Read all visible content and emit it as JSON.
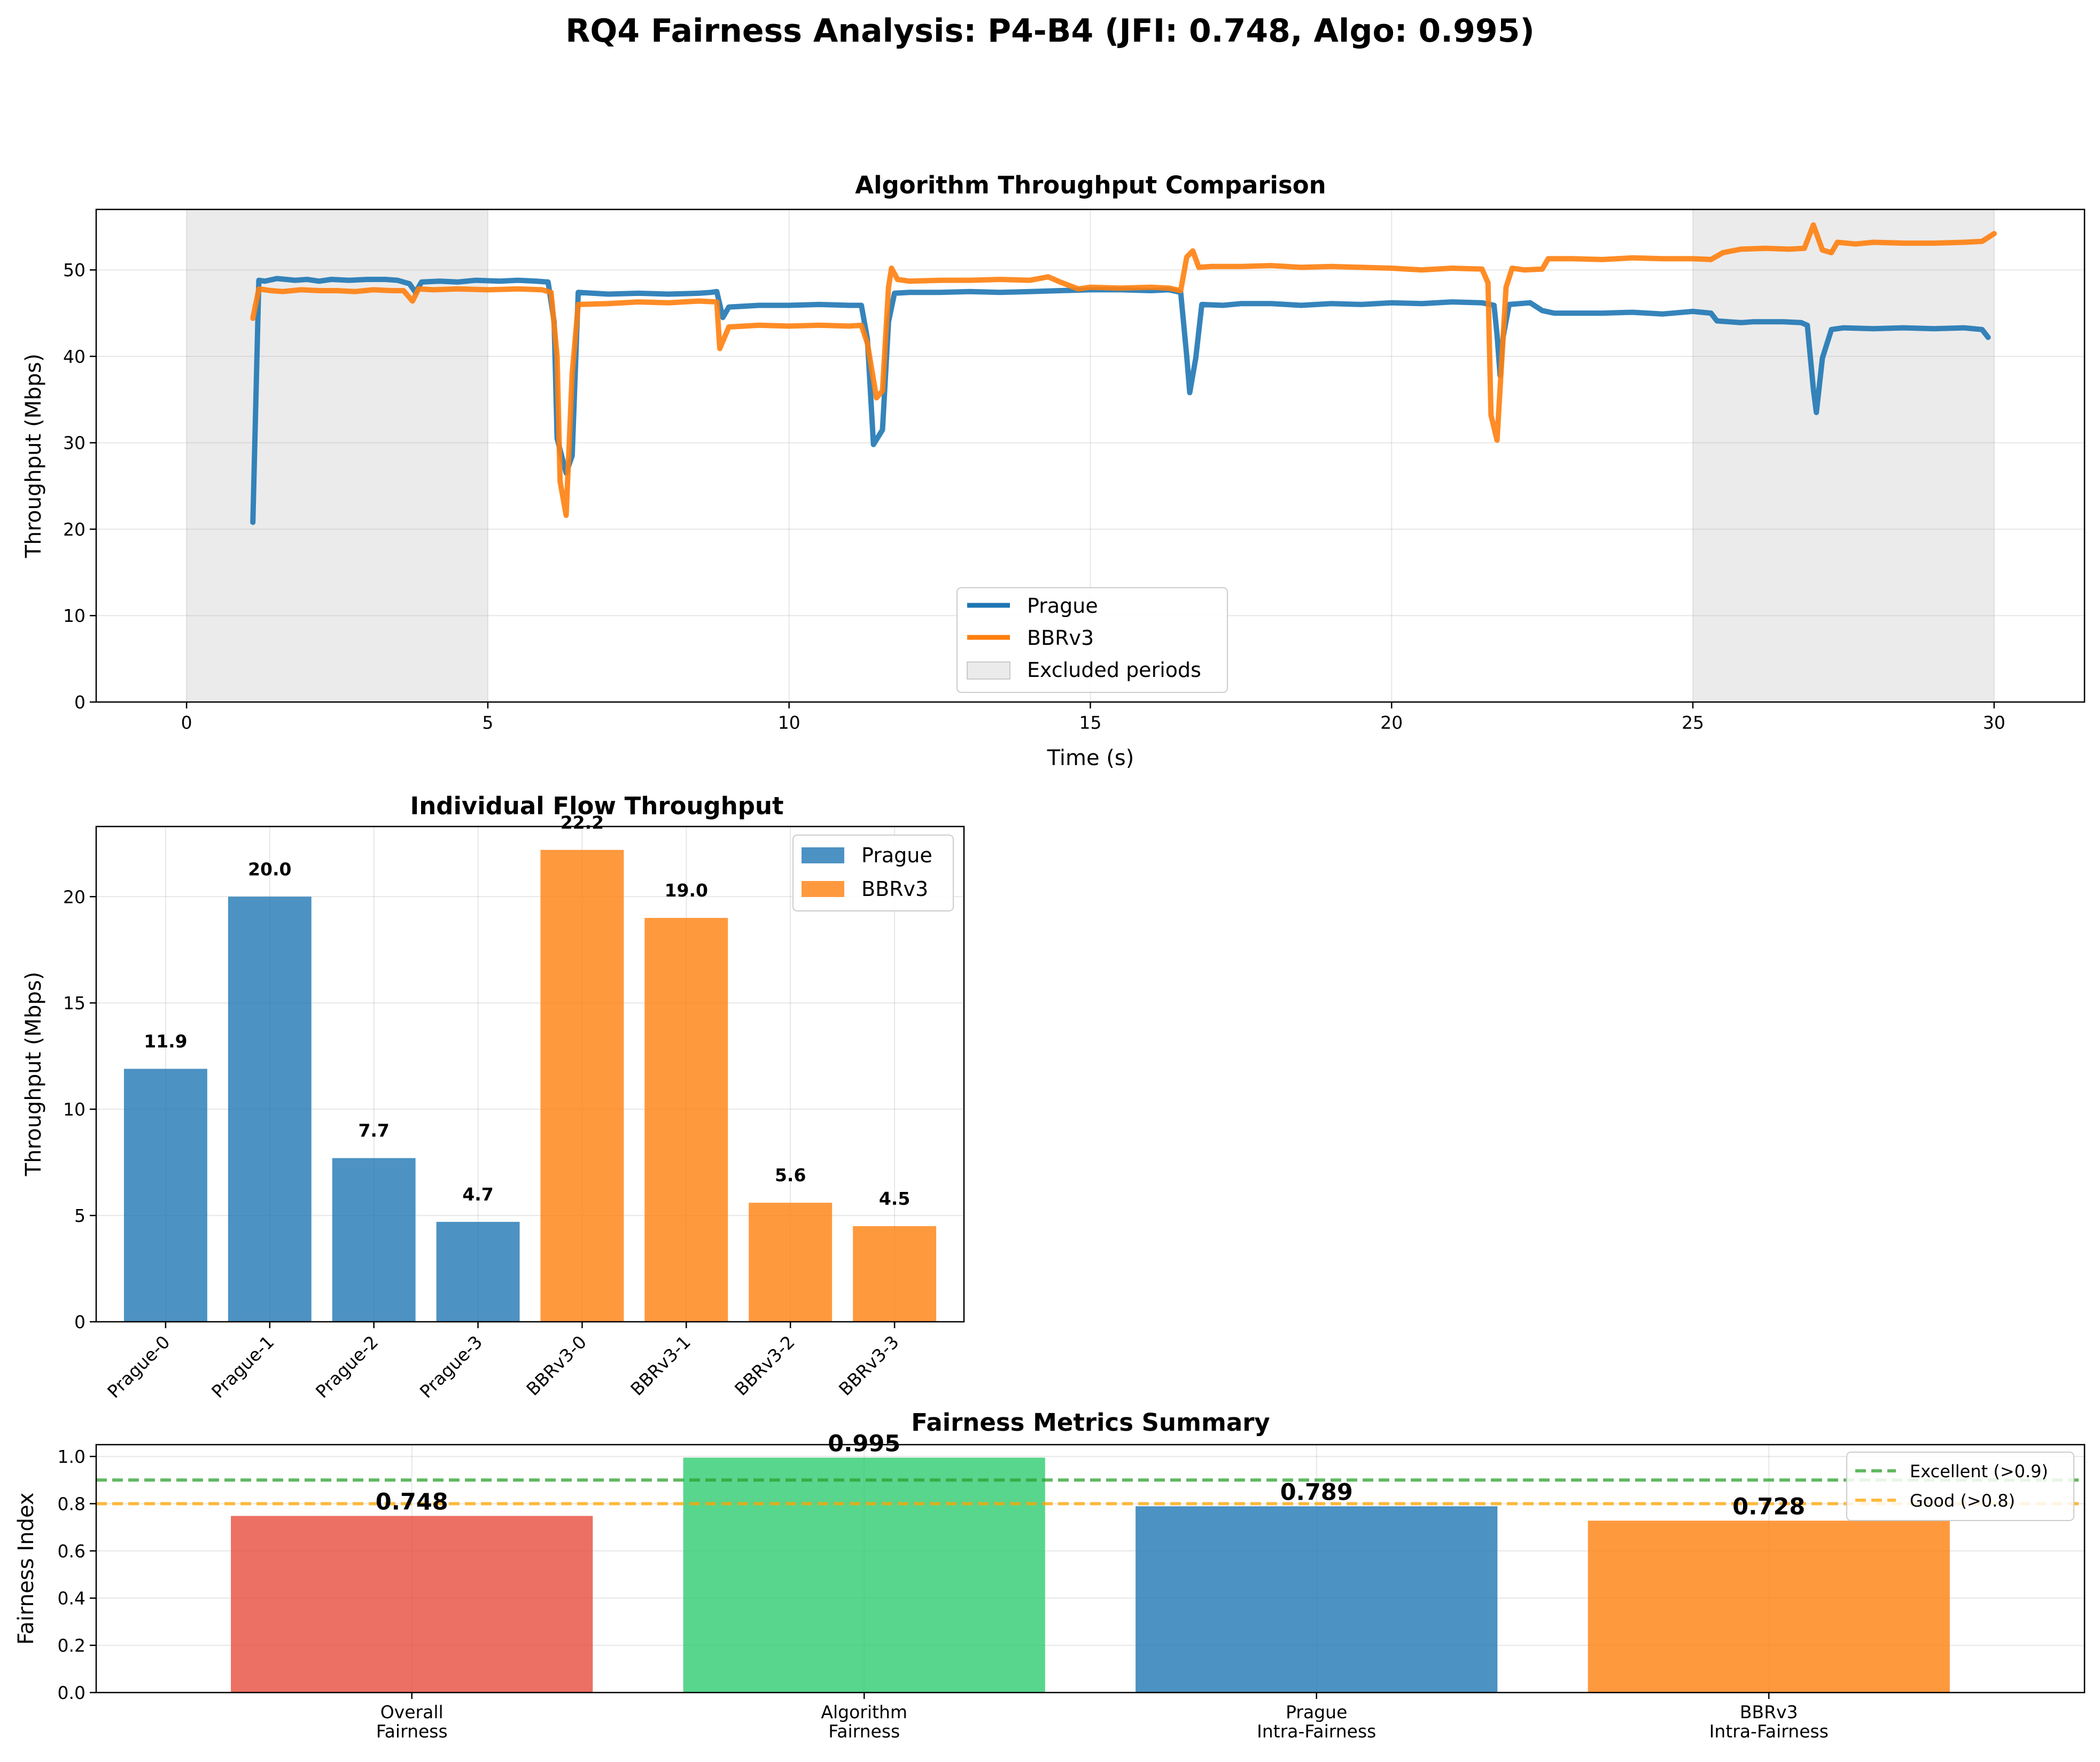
{
  "figure": {
    "suptitle": "RQ4 Fairness Analysis: P4-B4 (JFI: 0.748, Algo: 0.995)"
  },
  "colors": {
    "prague": "#1f77b4",
    "bbrv3": "#ff7f0e",
    "overall": "#e74c3c",
    "algorithm": "#2ecc71",
    "excellent": "#2ca02c",
    "good": "#ffa500",
    "excluded": "#d3d3d3"
  },
  "chart_data": [
    {
      "id": "timeseries",
      "type": "line",
      "title": "Algorithm Throughput Comparison",
      "xlabel": "Time (s)",
      "ylabel": "Throughput (Mbps)",
      "xlim": [
        -1.5,
        31.5
      ],
      "ylim": [
        0,
        57
      ],
      "xticks": [
        "0",
        "5",
        "10",
        "15",
        "20",
        "25",
        "30"
      ],
      "yticks": [
        "0",
        "10",
        "20",
        "30",
        "40",
        "50"
      ],
      "grid": true,
      "legend_position": "lower-center",
      "legend": [
        "Prague",
        "BBRv3",
        "Excluded periods"
      ],
      "excluded_periods": [
        [
          0,
          5
        ],
        [
          25,
          30
        ]
      ],
      "series": [
        {
          "name": "Prague",
          "color_key": "prague",
          "points": [
            [
              1.1,
              20.8
            ],
            [
              1.2,
              48.8
            ],
            [
              1.3,
              48.7
            ],
            [
              1.5,
              49.0
            ],
            [
              1.8,
              48.8
            ],
            [
              2.0,
              48.9
            ],
            [
              2.2,
              48.7
            ],
            [
              2.4,
              48.9
            ],
            [
              2.7,
              48.8
            ],
            [
              3.0,
              48.9
            ],
            [
              3.3,
              48.9
            ],
            [
              3.5,
              48.8
            ],
            [
              3.7,
              48.4
            ],
            [
              3.8,
              47.4
            ],
            [
              3.9,
              48.6
            ],
            [
              4.2,
              48.7
            ],
            [
              4.5,
              48.6
            ],
            [
              4.8,
              48.8
            ],
            [
              5.2,
              48.7
            ],
            [
              5.5,
              48.8
            ],
            [
              5.8,
              48.7
            ],
            [
              6.0,
              48.6
            ],
            [
              6.1,
              44.0
            ],
            [
              6.15,
              30.5
            ],
            [
              6.3,
              26.5
            ],
            [
              6.4,
              28.5
            ],
            [
              6.5,
              47.4
            ],
            [
              7.0,
              47.2
            ],
            [
              7.5,
              47.3
            ],
            [
              8.0,
              47.2
            ],
            [
              8.5,
              47.3
            ],
            [
              8.7,
              47.4
            ],
            [
              8.8,
              47.5
            ],
            [
              8.9,
              44.5
            ],
            [
              9.0,
              45.7
            ],
            [
              9.5,
              45.9
            ],
            [
              10.0,
              45.9
            ],
            [
              10.5,
              46.0
            ],
            [
              11.0,
              45.9
            ],
            [
              11.2,
              45.9
            ],
            [
              11.3,
              42.0
            ],
            [
              11.4,
              29.8
            ],
            [
              11.55,
              31.5
            ],
            [
              11.65,
              44.0
            ],
            [
              11.75,
              47.3
            ],
            [
              12.0,
              47.4
            ],
            [
              12.5,
              47.4
            ],
            [
              13.0,
              47.5
            ],
            [
              13.5,
              47.4
            ],
            [
              14.0,
              47.5
            ],
            [
              14.5,
              47.6
            ],
            [
              15.0,
              47.7
            ],
            [
              15.5,
              47.7
            ],
            [
              16.0,
              47.6
            ],
            [
              16.3,
              47.7
            ],
            [
              16.5,
              47.4
            ],
            [
              16.6,
              40.0
            ],
            [
              16.65,
              35.8
            ],
            [
              16.75,
              39.8
            ],
            [
              16.85,
              46.0
            ],
            [
              17.2,
              45.9
            ],
            [
              17.5,
              46.1
            ],
            [
              18.0,
              46.1
            ],
            [
              18.5,
              45.9
            ],
            [
              19.0,
              46.1
            ],
            [
              19.5,
              46.0
            ],
            [
              20.0,
              46.2
            ],
            [
              20.5,
              46.1
            ],
            [
              21.0,
              46.3
            ],
            [
              21.5,
              46.2
            ],
            [
              21.7,
              45.9
            ],
            [
              21.75,
              42.5
            ],
            [
              21.8,
              37.8
            ],
            [
              21.85,
              42.2
            ],
            [
              21.95,
              46.0
            ],
            [
              22.3,
              46.2
            ],
            [
              22.5,
              45.3
            ],
            [
              22.7,
              45.0
            ],
            [
              23.0,
              45.0
            ],
            [
              23.5,
              45.0
            ],
            [
              24.0,
              45.1
            ],
            [
              24.5,
              44.9
            ],
            [
              25.0,
              45.2
            ],
            [
              25.3,
              45.0
            ],
            [
              25.4,
              44.1
            ],
            [
              25.6,
              44.0
            ],
            [
              25.8,
              43.9
            ],
            [
              26.0,
              44.0
            ],
            [
              26.5,
              44.0
            ],
            [
              26.8,
              43.9
            ],
            [
              26.9,
              43.6
            ],
            [
              27.0,
              36.2
            ],
            [
              27.05,
              33.5
            ],
            [
              27.15,
              39.8
            ],
            [
              27.3,
              43.1
            ],
            [
              27.5,
              43.3
            ],
            [
              28.0,
              43.2
            ],
            [
              28.5,
              43.3
            ],
            [
              29.0,
              43.2
            ],
            [
              29.5,
              43.3
            ],
            [
              29.8,
              43.1
            ],
            [
              29.9,
              42.2
            ]
          ]
        },
        {
          "name": "BBRv3",
          "color_key": "bbrv3",
          "points": [
            [
              1.1,
              44.4
            ],
            [
              1.2,
              47.8
            ],
            [
              1.4,
              47.6
            ],
            [
              1.6,
              47.5
            ],
            [
              1.9,
              47.7
            ],
            [
              2.2,
              47.6
            ],
            [
              2.5,
              47.6
            ],
            [
              2.8,
              47.5
            ],
            [
              3.1,
              47.7
            ],
            [
              3.4,
              47.6
            ],
            [
              3.6,
              47.6
            ],
            [
              3.75,
              46.4
            ],
            [
              3.85,
              47.8
            ],
            [
              4.1,
              47.7
            ],
            [
              4.5,
              47.8
            ],
            [
              5.0,
              47.7
            ],
            [
              5.5,
              47.8
            ],
            [
              5.9,
              47.7
            ],
            [
              6.05,
              47.4
            ],
            [
              6.15,
              40.0
            ],
            [
              6.2,
              25.5
            ],
            [
              6.3,
              21.6
            ],
            [
              6.4,
              38.0
            ],
            [
              6.5,
              46.0
            ],
            [
              7.0,
              46.1
            ],
            [
              7.5,
              46.3
            ],
            [
              8.0,
              46.2
            ],
            [
              8.5,
              46.4
            ],
            [
              8.8,
              46.3
            ],
            [
              8.85,
              40.9
            ],
            [
              9.0,
              43.4
            ],
            [
              9.5,
              43.6
            ],
            [
              10.0,
              43.5
            ],
            [
              10.5,
              43.6
            ],
            [
              11.0,
              43.5
            ],
            [
              11.2,
              43.6
            ],
            [
              11.3,
              41.5
            ],
            [
              11.45,
              35.2
            ],
            [
              11.55,
              36.0
            ],
            [
              11.65,
              48.0
            ],
            [
              11.7,
              50.2
            ],
            [
              11.8,
              48.9
            ],
            [
              12.0,
              48.7
            ],
            [
              12.5,
              48.8
            ],
            [
              13.0,
              48.8
            ],
            [
              13.5,
              48.9
            ],
            [
              14.0,
              48.8
            ],
            [
              14.3,
              49.2
            ],
            [
              14.5,
              48.6
            ],
            [
              14.8,
              47.8
            ],
            [
              15.0,
              48.0
            ],
            [
              15.5,
              47.9
            ],
            [
              16.0,
              48.0
            ],
            [
              16.3,
              47.9
            ],
            [
              16.5,
              47.6
            ],
            [
              16.6,
              51.5
            ],
            [
              16.7,
              52.2
            ],
            [
              16.8,
              50.3
            ],
            [
              17.0,
              50.4
            ],
            [
              17.5,
              50.4
            ],
            [
              18.0,
              50.5
            ],
            [
              18.5,
              50.3
            ],
            [
              19.0,
              50.4
            ],
            [
              19.5,
              50.3
            ],
            [
              20.0,
              50.2
            ],
            [
              20.5,
              50.0
            ],
            [
              21.0,
              50.2
            ],
            [
              21.5,
              50.1
            ],
            [
              21.6,
              48.5
            ],
            [
              21.65,
              33.2
            ],
            [
              21.75,
              30.3
            ],
            [
              21.9,
              48.0
            ],
            [
              22.0,
              50.2
            ],
            [
              22.2,
              50.0
            ],
            [
              22.5,
              50.1
            ],
            [
              22.6,
              51.3
            ],
            [
              23.0,
              51.3
            ],
            [
              23.5,
              51.2
            ],
            [
              24.0,
              51.4
            ],
            [
              24.5,
              51.3
            ],
            [
              25.0,
              51.3
            ],
            [
              25.3,
              51.2
            ],
            [
              25.5,
              52.0
            ],
            [
              25.8,
              52.4
            ],
            [
              26.2,
              52.5
            ],
            [
              26.6,
              52.4
            ],
            [
              26.85,
              52.5
            ],
            [
              27.0,
              55.2
            ],
            [
              27.15,
              52.3
            ],
            [
              27.3,
              52.0
            ],
            [
              27.4,
              53.2
            ],
            [
              27.7,
              53.0
            ],
            [
              28.0,
              53.2
            ],
            [
              28.5,
              53.1
            ],
            [
              29.0,
              53.1
            ],
            [
              29.5,
              53.2
            ],
            [
              29.8,
              53.3
            ],
            [
              30.0,
              54.2
            ]
          ]
        }
      ]
    },
    {
      "id": "flows",
      "type": "bar",
      "title": "Individual Flow Throughput",
      "xlabel": "",
      "ylabel": "Throughput (Mbps)",
      "ylim": [
        0,
        23.3
      ],
      "yticks": [
        "0",
        "5",
        "10",
        "15",
        "20"
      ],
      "grid": true,
      "legend_position": "top-right",
      "legend": [
        "Prague",
        "BBRv3"
      ],
      "categories": [
        "Prague-0",
        "Prague-1",
        "Prague-2",
        "Prague-3",
        "BBRv3-0",
        "BBRv3-1",
        "BBRv3-2",
        "BBRv3-3"
      ],
      "values": [
        11.9,
        20.0,
        7.7,
        4.7,
        22.2,
        19.0,
        5.6,
        4.5
      ],
      "value_labels": [
        "11.9",
        "20.0",
        "7.7",
        "4.7",
        "22.2",
        "19.0",
        "5.6",
        "4.5"
      ],
      "bar_color_keys": [
        "prague",
        "prague",
        "prague",
        "prague",
        "bbrv3",
        "bbrv3",
        "bbrv3",
        "bbrv3"
      ]
    },
    {
      "id": "metrics",
      "type": "bar",
      "title": "Fairness Metrics Summary",
      "xlabel": "",
      "ylabel": "Fairness Index",
      "ylim": [
        0,
        1.05
      ],
      "yticks": [
        "0.0",
        "0.2",
        "0.4",
        "0.6",
        "0.8",
        "1.0"
      ],
      "grid": true,
      "legend_position": "top-right",
      "categories": [
        [
          "Overall",
          "Fairness"
        ],
        [
          "Algorithm",
          "Fairness"
        ],
        [
          "Prague",
          "Intra-Fairness"
        ],
        [
          "BBRv3",
          "Intra-Fairness"
        ]
      ],
      "values": [
        0.748,
        0.995,
        0.789,
        0.728
      ],
      "value_labels": [
        "0.748",
        "0.995",
        "0.789",
        "0.728"
      ],
      "bar_color_keys": [
        "overall",
        "algorithm",
        "prague",
        "bbrv3"
      ],
      "reference_lines": [
        {
          "label": "Excellent (>0.9)",
          "value": 0.9,
          "color_key": "excellent"
        },
        {
          "label": "Good (>0.8)",
          "value": 0.8,
          "color_key": "good"
        }
      ]
    }
  ]
}
